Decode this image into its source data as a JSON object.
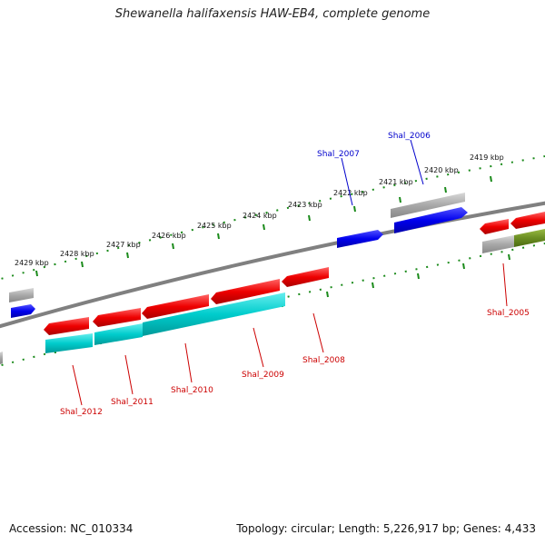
{
  "header": {
    "title": "Shewanella halifaxensis HAW-EB4, complete genome"
  },
  "footer": {
    "accession": "Accession: NC_010334",
    "summary": "Topology: circular; Length: 5,226,917 bp; Genes: 4,433"
  },
  "ticks": [
    "2429 kbp",
    "2428 kbp",
    "2427 kbp",
    "2426 kbp",
    "2425 kbp",
    "2424 kbp",
    "2423 kbp",
    "2422 kbp",
    "2421 kbp",
    "2420 kbp",
    "2419 kbp"
  ],
  "genes": {
    "top": [
      {
        "label": "Shal_2007",
        "color": "#0000cc"
      },
      {
        "label": "Shal_2006",
        "color": "#0000cc"
      }
    ],
    "bottom": [
      {
        "label": "Shal_2012",
        "color": "#cc0000"
      },
      {
        "label": "Shal_2011",
        "color": "#cc0000"
      },
      {
        "label": "Shal_2010",
        "color": "#cc0000"
      },
      {
        "label": "Shal_2009",
        "color": "#cc0000"
      },
      {
        "label": "Shal_2008",
        "color": "#cc0000"
      },
      {
        "label": "Shal_2005",
        "color": "#cc0000"
      }
    ]
  },
  "colors": {
    "forward_cds": "#ff0000",
    "reverse_cds": "#0000ff",
    "gene_feature": "#a0a0a0",
    "rna_feature": "#00c8c8",
    "other_feature": "#6b8e23",
    "backbone": "#808080",
    "tick": "#1a8a1a"
  }
}
